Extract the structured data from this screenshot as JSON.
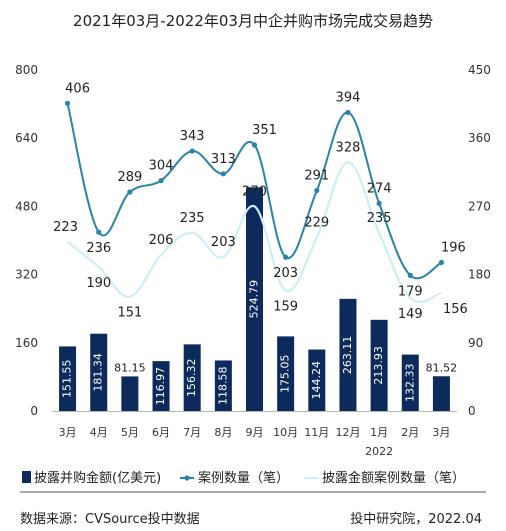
{
  "title": "2021年03月-2022年03月中企并购市场完成交易趋势",
  "footer": {
    "source": "数据来源：CVSource投中数据",
    "credit": "投中研究院，2022.04"
  },
  "colors": {
    "bar": "#0d2a5c",
    "line_cases": "#2a83a8",
    "line_disclosed": "#cdeef5",
    "axis_text": "#333333"
  },
  "chart_data": {
    "type": "bar",
    "categories": [
      "3月",
      "4月",
      "5月",
      "6月",
      "7月",
      "8月",
      "9月",
      "10月",
      "11月",
      "12月",
      "1月",
      "2月",
      "3月"
    ],
    "year_label": "2022",
    "series": [
      {
        "name": "披露并购金额(亿美元)",
        "type": "bar",
        "axis": "left",
        "values": [
          151.55,
          181.34,
          81.15,
          116.97,
          156.32,
          118.58,
          524.79,
          175.05,
          144.24,
          263.11,
          213.93,
          132.33,
          81.52
        ],
        "labels": [
          "151.55",
          "181.34",
          "81.15",
          "116.97",
          "156.32",
          "118.58",
          "524.79",
          "175.05",
          "144.24",
          "263.11",
          "213.93",
          "132.33",
          "81.52"
        ]
      },
      {
        "name": "案例数量（笔）",
        "type": "line",
        "axis": "right",
        "values": [
          406,
          236,
          289,
          304,
          343,
          313,
          351,
          203,
          291,
          394,
          274,
          179,
          196
        ]
      },
      {
        "name": "披露金额案例数量（笔）",
        "type": "line",
        "axis": "right",
        "values": [
          223,
          190,
          151,
          206,
          235,
          203,
          270,
          159,
          229,
          328,
          235,
          149,
          156
        ]
      }
    ],
    "left_axis": {
      "ticks": [
        "0",
        "160",
        "320",
        "480",
        "640",
        "800"
      ],
      "range": [
        0,
        800
      ]
    },
    "right_axis": {
      "ticks": [
        "0",
        "90",
        "180",
        "270",
        "360",
        "450"
      ],
      "range": [
        0,
        450
      ]
    },
    "legend_position": "bottom",
    "grid": false
  }
}
